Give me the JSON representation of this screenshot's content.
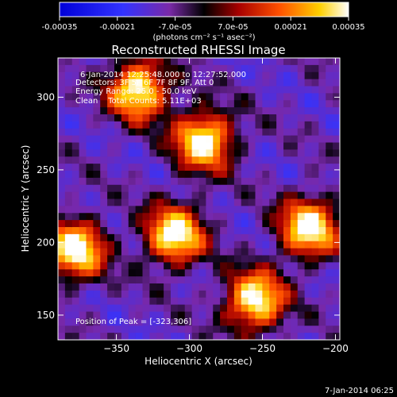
{
  "colorbar": {
    "ticks": [
      "-0.00035",
      "-0.00021",
      "-7.0e-05",
      "7.0e-05",
      "0.00021",
      "0.00035"
    ],
    "unit_label": "(photons cm⁻² s⁻¹ asec⁻²)"
  },
  "chart_data": {
    "type": "heatmap",
    "title": "Reconstructed RHESSI Image",
    "xlabel": "Heliocentric X (arcsec)",
    "ylabel": "Heliocentric Y (arcsec)",
    "xlim": [
      -390,
      -197
    ],
    "ylim": [
      133,
      327
    ],
    "xticks": [
      -350,
      -300,
      -250,
      -200
    ],
    "yticks": [
      150,
      200,
      250,
      300
    ],
    "colorbar_range": [
      -0.00035,
      0.00035
    ],
    "colormap": "blue-purple-red-yellow-white",
    "bright_regions": [
      {
        "x": -335,
        "y": 305
      },
      {
        "x": -378,
        "y": 195
      },
      {
        "x": -310,
        "y": 205
      },
      {
        "x": -255,
        "y": 160
      },
      {
        "x": -218,
        "y": 210
      },
      {
        "x": -290,
        "y": 270
      }
    ],
    "peak": [
      -323,
      306
    ],
    "annotations": [
      "6-Jan-2014 12:25:48.000 to 12:27:52.000",
      "Detectors: 3F 5F 6F 7F 8F 9F, Att 0",
      "Energy Range: 25.0 - 50.0 keV",
      "Clean    Total Counts: 5.11E+03",
      "Position of Peak = [-323,306]"
    ]
  },
  "footer_timestamp": "7-Jan-2014 06:25"
}
